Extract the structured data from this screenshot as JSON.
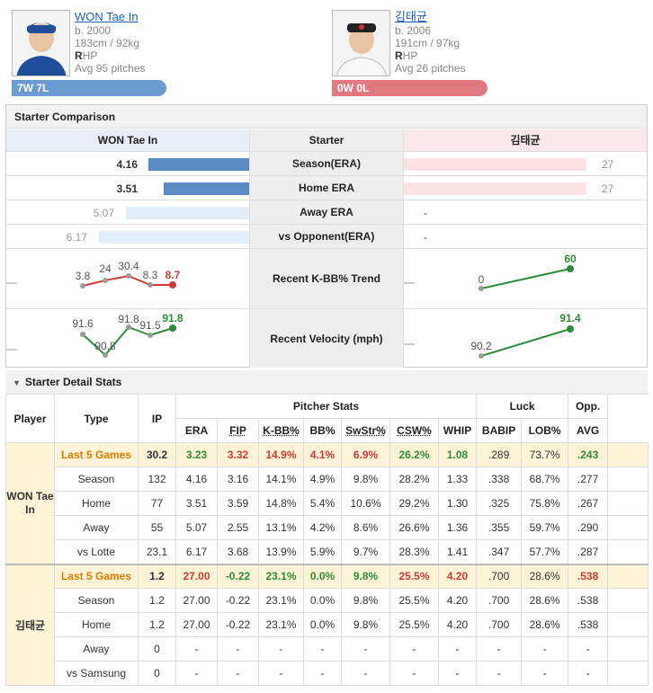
{
  "players": [
    {
      "name": "WON Tae In",
      "born": "b. 2000",
      "body": "183cm / 92kg",
      "throws_b": "R",
      "throws_rest": "HP",
      "avg": "Avg 95 pitches",
      "record": "7W 7L"
    },
    {
      "name": "김태균",
      "born": "b. 2006",
      "body": "191cm / 97kg",
      "throws_b": "R",
      "throws_rest": "HP",
      "avg": "Avg 26 pitches",
      "record": "0W 0L"
    }
  ],
  "comparison": {
    "title": "Starter Comparison",
    "left_header": "WON Tae In",
    "mid_header": "Starter",
    "right_header": "김태균",
    "rows": [
      {
        "label": "Season(ERA)",
        "left": "4.16",
        "right": "27"
      },
      {
        "label": "Home ERA",
        "left": "3.51",
        "right": "27"
      },
      {
        "label": "Away ERA",
        "left": "5.07",
        "right": "-"
      },
      {
        "label": "vs Opponent(ERA)",
        "left": "6.17",
        "right": "-"
      }
    ],
    "kbb": {
      "label": "Recent K-BB% Trend",
      "left": [
        "3.8",
        "24",
        "30.4",
        "8.3",
        "8.7"
      ],
      "right": [
        "0",
        "60"
      ]
    },
    "velo": {
      "label": "Recent Velocity (mph)",
      "left": [
        "91.6",
        "90.8",
        "91.8",
        "91.5",
        "91.8"
      ],
      "right": [
        "90.2",
        "91.4"
      ]
    }
  },
  "detail": {
    "title": "Starter Detail Stats",
    "headers": {
      "player": "Player",
      "type": "Type",
      "ip": "IP",
      "pitcher_stats": "Pitcher Stats",
      "luck": "Luck",
      "opp": "Opp.",
      "cols": [
        "ERA",
        "FIP",
        "K-BB%",
        "BB%",
        "SwStr%",
        "CSW%",
        "WHIP",
        "BABIP",
        "LOB%",
        "AVG"
      ]
    },
    "groups": [
      {
        "player": "WON Tae In",
        "rows": [
          {
            "type": "Last 5 Games",
            "ip": "30.2",
            "v": [
              "3.23",
              "3.32",
              "14.9%",
              "4.1%",
              "6.9%",
              "26.2%",
              "1.08",
              ".289",
              "73.7%",
              ".243"
            ]
          },
          {
            "type": "Season",
            "ip": "132",
            "v": [
              "4.16",
              "3.16",
              "14.1%",
              "4.9%",
              "9.8%",
              "28.2%",
              "1.33",
              ".338",
              "68.7%",
              ".277"
            ]
          },
          {
            "type": "Home",
            "ip": "77",
            "v": [
              "3.51",
              "3.59",
              "14.8%",
              "5.4%",
              "10.6%",
              "29.2%",
              "1.30",
              ".325",
              "75.8%",
              ".267"
            ]
          },
          {
            "type": "Away",
            "ip": "55",
            "v": [
              "5.07",
              "2.55",
              "13.1%",
              "4.2%",
              "8.6%",
              "26.6%",
              "1.36",
              ".355",
              "59.7%",
              ".290"
            ]
          },
          {
            "type": "vs Lotte",
            "ip": "23.1",
            "v": [
              "6.17",
              "3.68",
              "13.9%",
              "5.9%",
              "9.7%",
              "28.3%",
              "1.41",
              ".347",
              "57.7%",
              ".287"
            ]
          }
        ]
      },
      {
        "player": "김태균",
        "rows": [
          {
            "type": "Last 5 Games",
            "ip": "1.2",
            "v": [
              "27.00",
              "-0.22",
              "23.1%",
              "0.0%",
              "9.8%",
              "25.5%",
              "4.20",
              ".700",
              "28.6%",
              ".538"
            ]
          },
          {
            "type": "Season",
            "ip": "1.2",
            "v": [
              "27.00",
              "-0.22",
              "23.1%",
              "0.0%",
              "9.8%",
              "25.5%",
              "4.20",
              ".700",
              "28.6%",
              ".538"
            ]
          },
          {
            "type": "Home",
            "ip": "1.2",
            "v": [
              "27.00",
              "-0.22",
              "23.1%",
              "0.0%",
              "9.8%",
              "25.5%",
              "4.20",
              ".700",
              "28.6%",
              ".538"
            ]
          },
          {
            "type": "Away",
            "ip": "0",
            "v": [
              "-",
              "-",
              "-",
              "-",
              "-",
              "-",
              "-",
              "-",
              "-",
              "-"
            ]
          },
          {
            "type": "vs Samsung",
            "ip": "0",
            "v": [
              "-",
              "-",
              "-",
              "-",
              "-",
              "-",
              "-",
              "-",
              "-",
              "-"
            ]
          }
        ]
      }
    ]
  },
  "colors": {
    "blue": "#6a9bd1",
    "red": "#e07a7e",
    "green": "#2e8b3a",
    "orange": "#e07b00"
  }
}
